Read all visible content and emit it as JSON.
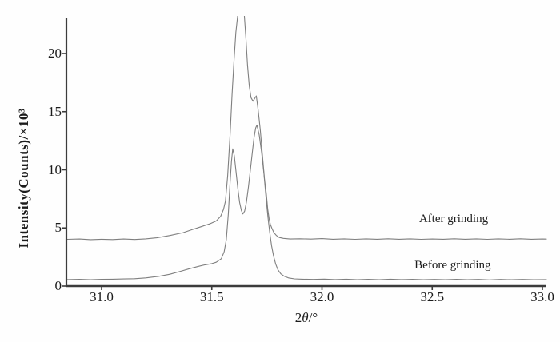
{
  "figure": {
    "xlabel_parts": {
      "prefix": "2",
      "theta": "θ",
      "suffix": "/°"
    },
    "ylabel": "Intensity(Counts)/×10³"
  },
  "colors": {
    "background": "#fefefe",
    "axis": "#3c3c3c",
    "curve": "#7f7f7f",
    "text": "#1c1c1c"
  },
  "chart_data": {
    "type": "line",
    "title": "",
    "xlabel": "2θ/°",
    "ylabel": "Intensity(Counts)/×10³",
    "xlim": [
      30.84,
      33.02
    ],
    "ylim": [
      0,
      23.2
    ],
    "grid": false,
    "legend_position": "inline-annotations-right",
    "x_ticks": [
      {
        "v": 31.0,
        "label": "31.0"
      },
      {
        "v": 31.5,
        "label": "31.5"
      },
      {
        "v": 32.0,
        "label": "32.0"
      },
      {
        "v": 32.5,
        "label": "32.5"
      },
      {
        "v": 33.0,
        "label": "33.0"
      }
    ],
    "y_ticks": [
      {
        "v": 0,
        "label": "0"
      },
      {
        "v": 5,
        "label": "5"
      },
      {
        "v": 10,
        "label": "10"
      },
      {
        "v": 15,
        "label": "15"
      },
      {
        "v": 20,
        "label": "20"
      }
    ],
    "units": {
      "x": "degrees 2-theta",
      "y": "counts ×10³"
    },
    "series": [
      {
        "name": "After grinding",
        "color": "#7f7f7f",
        "baseline": 4.0,
        "main_peak": {
          "x": 31.63,
          "clipped_above": 23.2
        },
        "secondary_peak": {
          "x": 31.7,
          "y": 16.35
        },
        "points": [
          [
            30.844,
            4.02
          ],
          [
            30.9,
            4.05
          ],
          [
            30.95,
            3.99
          ],
          [
            31.0,
            4.03
          ],
          [
            31.05,
            4.0
          ],
          [
            31.1,
            4.05
          ],
          [
            31.15,
            4.01
          ],
          [
            31.2,
            4.06
          ],
          [
            31.25,
            4.15
          ],
          [
            31.31,
            4.35
          ],
          [
            31.37,
            4.6
          ],
          [
            31.41,
            4.85
          ],
          [
            31.45,
            5.1
          ],
          [
            31.49,
            5.35
          ],
          [
            31.52,
            5.6
          ],
          [
            31.54,
            6.0
          ],
          [
            31.553,
            6.6
          ],
          [
            31.562,
            7.3
          ],
          [
            31.572,
            9.5
          ],
          [
            31.583,
            13.0
          ],
          [
            31.592,
            16.5
          ],
          [
            31.601,
            19.5
          ],
          [
            31.609,
            21.8
          ],
          [
            31.617,
            23.2
          ],
          [
            31.625,
            24.6
          ],
          [
            31.633,
            25.3
          ],
          [
            31.641,
            24.6
          ],
          [
            31.648,
            23.2
          ],
          [
            31.655,
            21.2
          ],
          [
            31.662,
            19.0
          ],
          [
            31.67,
            17.2
          ],
          [
            31.678,
            16.2
          ],
          [
            31.687,
            15.9
          ],
          [
            31.695,
            16.15
          ],
          [
            31.702,
            16.35
          ],
          [
            31.71,
            15.2
          ],
          [
            31.72,
            13.4
          ],
          [
            31.73,
            11.2
          ],
          [
            31.739,
            9.2
          ],
          [
            31.747,
            8.0
          ],
          [
            31.754,
            6.6
          ],
          [
            31.76,
            5.8
          ],
          [
            31.766,
            5.3
          ],
          [
            31.773,
            4.95
          ],
          [
            31.782,
            4.6
          ],
          [
            31.793,
            4.35
          ],
          [
            31.806,
            4.18
          ],
          [
            31.825,
            4.1
          ],
          [
            31.855,
            4.05
          ],
          [
            31.9,
            4.07
          ],
          [
            31.95,
            4.04
          ],
          [
            32.0,
            4.08
          ],
          [
            32.05,
            4.03
          ],
          [
            32.1,
            4.06
          ],
          [
            32.15,
            4.02
          ],
          [
            32.2,
            4.06
          ],
          [
            32.25,
            4.03
          ],
          [
            32.3,
            4.07
          ],
          [
            32.35,
            4.03
          ],
          [
            32.4,
            4.06
          ],
          [
            32.45,
            4.02
          ],
          [
            32.5,
            4.05
          ],
          [
            32.55,
            4.03
          ],
          [
            32.6,
            4.07
          ],
          [
            32.65,
            4.03
          ],
          [
            32.7,
            4.06
          ],
          [
            32.75,
            4.02
          ],
          [
            32.8,
            4.06
          ],
          [
            32.85,
            4.03
          ],
          [
            32.9,
            4.07
          ],
          [
            32.95,
            4.03
          ],
          [
            33.0,
            4.05
          ],
          [
            33.018,
            4.04
          ]
        ]
      },
      {
        "name": "Before grinding",
        "color": "#7f7f7f",
        "baseline": 0.55,
        "peak1": {
          "x": 31.595,
          "y": 11.8
        },
        "valley": {
          "x": 31.64,
          "y": 6.2
        },
        "peak2": {
          "x": 31.705,
          "y": 13.85
        },
        "points": [
          [
            30.844,
            0.56
          ],
          [
            30.9,
            0.58
          ],
          [
            30.95,
            0.55
          ],
          [
            31.0,
            0.58
          ],
          [
            31.05,
            0.59
          ],
          [
            31.1,
            0.61
          ],
          [
            31.15,
            0.63
          ],
          [
            31.2,
            0.7
          ],
          [
            31.26,
            0.84
          ],
          [
            31.31,
            1.02
          ],
          [
            31.36,
            1.28
          ],
          [
            31.4,
            1.5
          ],
          [
            31.44,
            1.7
          ],
          [
            31.47,
            1.83
          ],
          [
            31.5,
            1.93
          ],
          [
            31.52,
            2.05
          ],
          [
            31.543,
            2.35
          ],
          [
            31.556,
            2.95
          ],
          [
            31.566,
            4.0
          ],
          [
            31.575,
            6.2
          ],
          [
            31.583,
            8.9
          ],
          [
            31.589,
            10.7
          ],
          [
            31.595,
            11.8
          ],
          [
            31.602,
            11.2
          ],
          [
            31.61,
            9.8
          ],
          [
            31.618,
            8.4
          ],
          [
            31.626,
            7.2
          ],
          [
            31.634,
            6.5
          ],
          [
            31.641,
            6.2
          ],
          [
            31.649,
            6.45
          ],
          [
            31.657,
            7.2
          ],
          [
            31.666,
            8.5
          ],
          [
            31.675,
            10.0
          ],
          [
            31.684,
            11.5
          ],
          [
            31.692,
            12.8
          ],
          [
            31.699,
            13.6
          ],
          [
            31.705,
            13.85
          ],
          [
            31.715,
            13.0
          ],
          [
            31.726,
            11.5
          ],
          [
            31.737,
            9.6
          ],
          [
            31.747,
            7.4
          ],
          [
            31.755,
            5.9
          ],
          [
            31.763,
            4.6
          ],
          [
            31.771,
            3.5
          ],
          [
            31.78,
            2.6
          ],
          [
            31.79,
            1.9
          ],
          [
            31.8,
            1.4
          ],
          [
            31.813,
            1.05
          ],
          [
            31.828,
            0.85
          ],
          [
            31.848,
            0.7
          ],
          [
            31.875,
            0.62
          ],
          [
            31.91,
            0.59
          ],
          [
            31.96,
            0.57
          ],
          [
            32.01,
            0.6
          ],
          [
            32.06,
            0.56
          ],
          [
            32.11,
            0.59
          ],
          [
            32.16,
            0.55
          ],
          [
            32.21,
            0.58
          ],
          [
            32.26,
            0.55
          ],
          [
            32.31,
            0.59
          ],
          [
            32.36,
            0.56
          ],
          [
            32.41,
            0.58
          ],
          [
            32.46,
            0.54
          ],
          [
            32.51,
            0.57
          ],
          [
            32.56,
            0.55
          ],
          [
            32.61,
            0.58
          ],
          [
            32.66,
            0.55
          ],
          [
            32.71,
            0.57
          ],
          [
            32.76,
            0.53
          ],
          [
            32.81,
            0.57
          ],
          [
            32.86,
            0.54
          ],
          [
            32.91,
            0.57
          ],
          [
            32.96,
            0.54
          ],
          [
            33.018,
            0.56
          ]
        ]
      }
    ],
    "annotations": [
      {
        "text": "After grinding",
        "theta": 32.597,
        "value": 5.77
      },
      {
        "text": "Before grinding",
        "theta": 32.593,
        "value": 1.79
      }
    ]
  }
}
